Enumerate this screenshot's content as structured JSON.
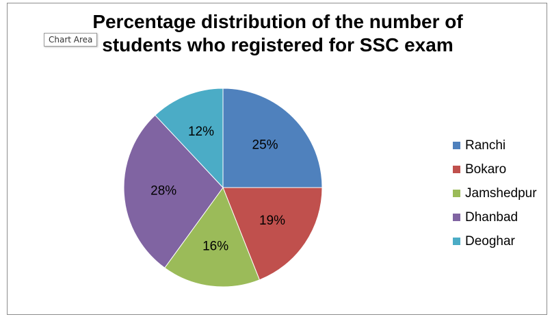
{
  "tooltip": "Chart Area",
  "chart_data": {
    "type": "pie",
    "title_lines": [
      "Percentage distribution of the number of",
      "students who registered for SSC exam"
    ],
    "categories": [
      "Ranchi",
      "Bokaro",
      "Jamshedpur",
      "Dhanbad",
      "Deoghar"
    ],
    "values": [
      25,
      19,
      16,
      28,
      12
    ],
    "labels": [
      "25%",
      "19%",
      "16%",
      "28%",
      "12%"
    ],
    "colors": [
      "#4F81BD",
      "#C0504D",
      "#9BBB59",
      "#8064A2",
      "#4BACC6"
    ],
    "legend_position": "right",
    "start_angle": "12 o'clock",
    "direction": "clockwise"
  }
}
